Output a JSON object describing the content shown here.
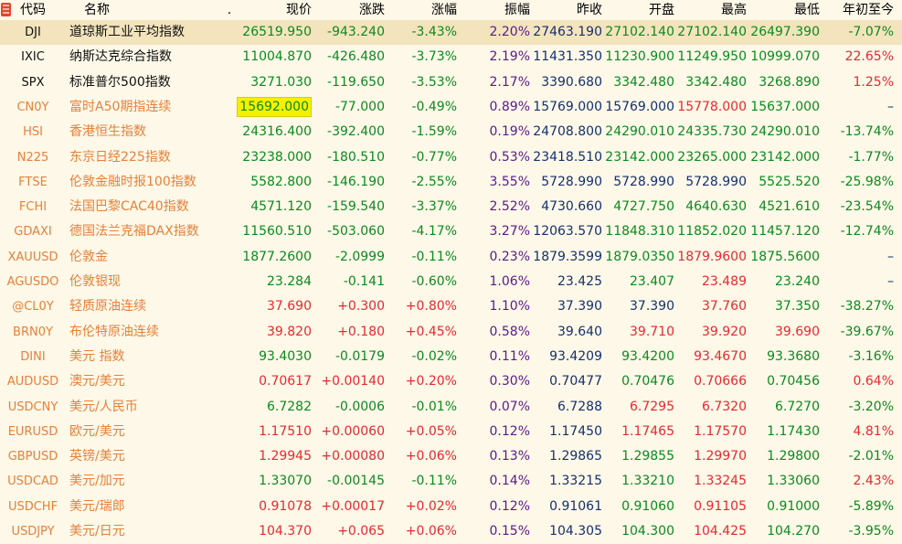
{
  "colors": {
    "up": "#e8292d",
    "down": "#0c8a1e",
    "flat": "#15306c",
    "code_index": "#111111",
    "code_other": "#e8803a",
    "name_index": "#111111",
    "name_other": "#e8803a",
    "amplitude": "#5a1a8c",
    "background": "#fdf8e8",
    "highlight": "#f5f000"
  },
  "header": {
    "code": "代码",
    "name": "名称",
    "dot": ".",
    "price": "现价",
    "change": "涨跌",
    "pct": "涨幅",
    "amp": "振幅",
    "prev": "昨收",
    "open": "开盘",
    "high": "最高",
    "low": "最低",
    "ytd": "年初至今"
  },
  "rows": [
    {
      "code": "DJI",
      "name": "道琼斯工业平均指数",
      "price": "26519.950",
      "change": "-943.240",
      "pct": "-3.43%",
      "amp": "2.20%",
      "prev": "27463.190",
      "open": "27102.140",
      "high": "27102.140",
      "low": "26497.390",
      "ytd": "-7.07%",
      "type": "index",
      "price_c": "down",
      "chg_c": "down",
      "open_c": "down",
      "high_c": "down",
      "low_c": "down",
      "ytd_c": "down",
      "selected": true
    },
    {
      "code": "IXIC",
      "name": "纳斯达克综合指数",
      "price": "11004.870",
      "change": "-426.480",
      "pct": "-3.73%",
      "amp": "2.19%",
      "prev": "11431.350",
      "open": "11230.900",
      "high": "11249.950",
      "low": "10999.070",
      "ytd": "22.65%",
      "type": "index",
      "price_c": "down",
      "chg_c": "down",
      "open_c": "down",
      "high_c": "down",
      "low_c": "down",
      "ytd_c": "up"
    },
    {
      "code": "SPX",
      "name": "标准普尔500指数",
      "price": "3271.030",
      "change": "-119.650",
      "pct": "-3.53%",
      "amp": "2.17%",
      "prev": "3390.680",
      "open": "3342.480",
      "high": "3342.480",
      "low": "3268.890",
      "ytd": "1.25%",
      "type": "index",
      "price_c": "down",
      "chg_c": "down",
      "open_c": "down",
      "high_c": "down",
      "low_c": "down",
      "ytd_c": "up"
    },
    {
      "code": "CN0Y",
      "name": "富时A50期指连续",
      "price": "15692.000",
      "change": "-77.000",
      "pct": "-0.49%",
      "amp": "0.89%",
      "prev": "15769.000",
      "open": "15769.000",
      "high": "15778.000",
      "low": "15637.000",
      "ytd": "–",
      "type": "other",
      "price_c": "down",
      "chg_c": "down",
      "open_c": "flat",
      "high_c": "up",
      "low_c": "down",
      "ytd_c": "flat",
      "highlight": true
    },
    {
      "code": "HSI",
      "name": "香港恒生指数",
      "price": "24316.400",
      "change": "-392.400",
      "pct": "-1.59%",
      "amp": "0.19%",
      "prev": "24708.800",
      "open": "24290.010",
      "high": "24335.730",
      "low": "24290.010",
      "ytd": "-13.74%",
      "type": "other",
      "price_c": "down",
      "chg_c": "down",
      "open_c": "down",
      "high_c": "down",
      "low_c": "down",
      "ytd_c": "down"
    },
    {
      "code": "N225",
      "name": "东京日经225指数",
      "price": "23238.000",
      "change": "-180.510",
      "pct": "-0.77%",
      "amp": "0.53%",
      "prev": "23418.510",
      "open": "23142.000",
      "high": "23265.000",
      "low": "23142.000",
      "ytd": "-1.77%",
      "type": "other",
      "price_c": "down",
      "chg_c": "down",
      "open_c": "down",
      "high_c": "down",
      "low_c": "down",
      "ytd_c": "down"
    },
    {
      "code": "FTSE",
      "name": "伦敦金融时报100指数",
      "price": "5582.800",
      "change": "-146.190",
      "pct": "-2.55%",
      "amp": "3.55%",
      "prev": "5728.990",
      "open": "5728.990",
      "high": "5728.990",
      "low": "5525.520",
      "ytd": "-25.98%",
      "type": "other",
      "price_c": "down",
      "chg_c": "down",
      "open_c": "flat",
      "high_c": "flat",
      "low_c": "down",
      "ytd_c": "down"
    },
    {
      "code": "FCHI",
      "name": "法国巴黎CAC40指数",
      "price": "4571.120",
      "change": "-159.540",
      "pct": "-3.37%",
      "amp": "2.52%",
      "prev": "4730.660",
      "open": "4727.750",
      "high": "4640.630",
      "low": "4521.610",
      "ytd": "-23.54%",
      "type": "other",
      "price_c": "down",
      "chg_c": "down",
      "open_c": "down",
      "high_c": "down",
      "low_c": "down",
      "ytd_c": "down"
    },
    {
      "code": "GDAXI",
      "name": "德国法兰克福DAX指数",
      "price": "11560.510",
      "change": "-503.060",
      "pct": "-4.17%",
      "amp": "3.27%",
      "prev": "12063.570",
      "open": "11848.310",
      "high": "11852.020",
      "low": "11457.120",
      "ytd": "-12.74%",
      "type": "other",
      "price_c": "down",
      "chg_c": "down",
      "open_c": "down",
      "high_c": "down",
      "low_c": "down",
      "ytd_c": "down"
    },
    {
      "code": "XAUUSD",
      "name": "伦敦金",
      "price": "1877.2600",
      "change": "-2.0999",
      "pct": "-0.11%",
      "amp": "0.23%",
      "prev": "1879.3599",
      "open": "1879.0350",
      "high": "1879.9600",
      "low": "1875.5600",
      "ytd": "–",
      "type": "other",
      "price_c": "down",
      "chg_c": "down",
      "open_c": "down",
      "high_c": "up",
      "low_c": "down",
      "ytd_c": "flat"
    },
    {
      "code": "AGUSDO",
      "name": "伦敦银现",
      "price": "23.284",
      "change": "-0.141",
      "pct": "-0.60%",
      "amp": "1.06%",
      "prev": "23.425",
      "open": "23.407",
      "high": "23.489",
      "low": "23.240",
      "ytd": "–",
      "type": "other",
      "price_c": "down",
      "chg_c": "down",
      "open_c": "down",
      "high_c": "up",
      "low_c": "down",
      "ytd_c": "flat"
    },
    {
      "code": "@CL0Y",
      "name": "轻质原油连续",
      "price": "37.690",
      "change": "+0.300",
      "pct": "+0.80%",
      "amp": "1.10%",
      "prev": "37.390",
      "open": "37.390",
      "high": "37.760",
      "low": "37.350",
      "ytd": "-38.27%",
      "type": "other",
      "price_c": "up",
      "chg_c": "up",
      "open_c": "flat",
      "high_c": "up",
      "low_c": "down",
      "ytd_c": "down"
    },
    {
      "code": "BRN0Y",
      "name": "布伦特原油连续",
      "price": "39.820",
      "change": "+0.180",
      "pct": "+0.45%",
      "amp": "0.58%",
      "prev": "39.640",
      "open": "39.710",
      "high": "39.920",
      "low": "39.690",
      "ytd": "-39.67%",
      "type": "other",
      "price_c": "up",
      "chg_c": "up",
      "open_c": "up",
      "high_c": "up",
      "low_c": "up",
      "ytd_c": "down"
    },
    {
      "code": "DINI",
      "name": "美元 指数",
      "price": "93.4030",
      "change": "-0.0179",
      "pct": "-0.02%",
      "amp": "0.11%",
      "prev": "93.4209",
      "open": "93.4200",
      "high": "93.4670",
      "low": "93.3680",
      "ytd": "-3.16%",
      "type": "other",
      "price_c": "down",
      "chg_c": "down",
      "open_c": "down",
      "high_c": "up",
      "low_c": "down",
      "ytd_c": "down"
    },
    {
      "code": "AUDUSD",
      "name": "澳元/美元",
      "price": "0.70617",
      "change": "+0.00140",
      "pct": "+0.20%",
      "amp": "0.30%",
      "prev": "0.70477",
      "open": "0.70476",
      "high": "0.70666",
      "low": "0.70456",
      "ytd": "0.64%",
      "type": "other",
      "price_c": "up",
      "chg_c": "up",
      "open_c": "down",
      "high_c": "up",
      "low_c": "down",
      "ytd_c": "up"
    },
    {
      "code": "USDCNY",
      "name": "美元/人民币",
      "price": "6.7282",
      "change": "-0.0006",
      "pct": "-0.01%",
      "amp": "0.07%",
      "prev": "6.7288",
      "open": "6.7295",
      "high": "6.7320",
      "low": "6.7270",
      "ytd": "-3.20%",
      "type": "other",
      "price_c": "down",
      "chg_c": "down",
      "open_c": "up",
      "high_c": "up",
      "low_c": "down",
      "ytd_c": "down"
    },
    {
      "code": "EURUSD",
      "name": "欧元/美元",
      "price": "1.17510",
      "change": "+0.00060",
      "pct": "+0.05%",
      "amp": "0.12%",
      "prev": "1.17450",
      "open": "1.17465",
      "high": "1.17570",
      "low": "1.17430",
      "ytd": "4.81%",
      "type": "other",
      "price_c": "up",
      "chg_c": "up",
      "open_c": "up",
      "high_c": "up",
      "low_c": "down",
      "ytd_c": "up"
    },
    {
      "code": "GBPUSD",
      "name": "英镑/美元",
      "price": "1.29945",
      "change": "+0.00080",
      "pct": "+0.06%",
      "amp": "0.13%",
      "prev": "1.29865",
      "open": "1.29855",
      "high": "1.29970",
      "low": "1.29800",
      "ytd": "-2.01%",
      "type": "other",
      "price_c": "up",
      "chg_c": "up",
      "open_c": "down",
      "high_c": "up",
      "low_c": "down",
      "ytd_c": "down"
    },
    {
      "code": "USDCAD",
      "name": "美元/加元",
      "price": "1.33070",
      "change": "-0.00145",
      "pct": "-0.11%",
      "amp": "0.14%",
      "prev": "1.33215",
      "open": "1.33210",
      "high": "1.33245",
      "low": "1.33060",
      "ytd": "2.43%",
      "type": "other",
      "price_c": "down",
      "chg_c": "down",
      "open_c": "down",
      "high_c": "up",
      "low_c": "down",
      "ytd_c": "up"
    },
    {
      "code": "USDCHF",
      "name": "美元/瑞郎",
      "price": "0.91078",
      "change": "+0.00017",
      "pct": "+0.02%",
      "amp": "0.12%",
      "prev": "0.91061",
      "open": "0.91060",
      "high": "0.91105",
      "low": "0.91000",
      "ytd": "-5.89%",
      "type": "other",
      "price_c": "up",
      "chg_c": "up",
      "open_c": "down",
      "high_c": "up",
      "low_c": "down",
      "ytd_c": "down"
    },
    {
      "code": "USDJPY",
      "name": "美元/日元",
      "price": "104.370",
      "change": "+0.065",
      "pct": "+0.06%",
      "amp": "0.15%",
      "prev": "104.305",
      "open": "104.300",
      "high": "104.425",
      "low": "104.270",
      "ytd": "-3.95%",
      "type": "other",
      "price_c": "up",
      "chg_c": "up",
      "open_c": "down",
      "high_c": "up",
      "low_c": "down",
      "ytd_c": "down"
    }
  ]
}
